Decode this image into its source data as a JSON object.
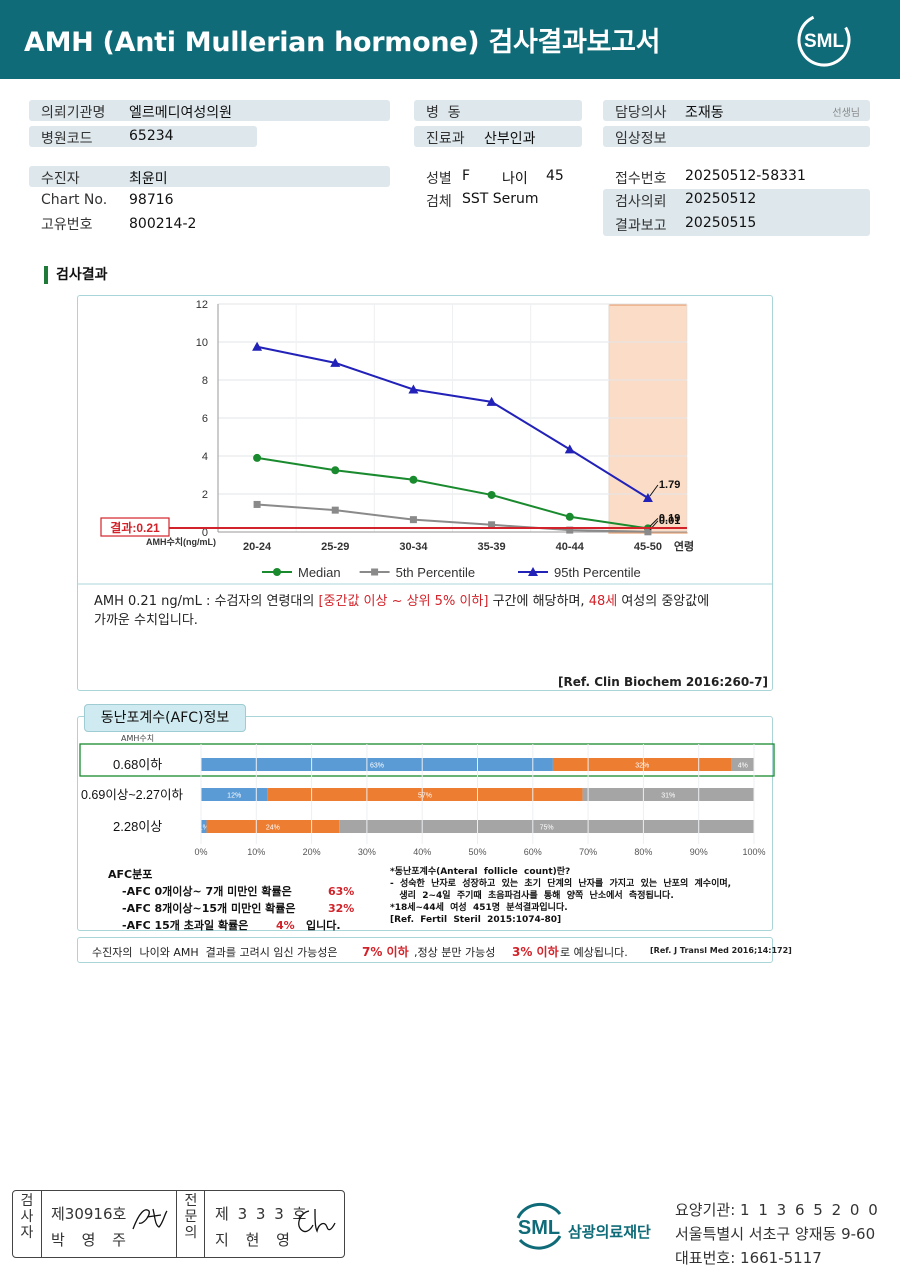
{
  "header": {
    "title": "AMH (Anti Mullerian hormone) 검사결과보고서",
    "logo_text": "SML"
  },
  "info": {
    "institution_label": "의뢰기관명",
    "institution": "엘르메디여성의원",
    "hospital_code_label": "병원코드",
    "hospital_code": "65234",
    "patient_label": "수진자",
    "patient": "최윤미",
    "chart_no_label": "Chart No.",
    "chart_no": "98716",
    "unique_no_label": "고유번호",
    "unique_no": "800214-2",
    "ward_label": "병  동",
    "ward": "",
    "dept_label": "진료과",
    "dept": "산부인과",
    "sex_label": "성별",
    "sex": "F",
    "age_label": "나이",
    "age": "45",
    "specimen_label": "검체",
    "specimen": "SST Serum",
    "doctor_label": "담당의사",
    "doctor": "조재동",
    "doctor_suffix": "선생님",
    "clinical_label": "임상정보",
    "clinical": "",
    "receipt_label": "접수번호",
    "receipt": "20250512-58331",
    "request_label": "검사의뢰",
    "request": "20250512",
    "report_label": "결과보고",
    "report": "20250515"
  },
  "section_title": "검사결과",
  "chart_data": {
    "type": "line",
    "categories": [
      "20-24",
      "25-29",
      "30-34",
      "35-39",
      "40-44",
      "45-50"
    ],
    "xlabel": "연령",
    "ylabel": "AMH수치(ng/mL)",
    "ylim": [
      0,
      12
    ],
    "yticks": [
      0,
      2,
      4,
      6,
      8,
      10,
      12
    ],
    "grid": true,
    "legend_position": "bottom",
    "highlight_category": "45-50",
    "series": [
      {
        "name": "Median",
        "color": "#1a8a2e",
        "marker": "circle",
        "values": [
          3.9,
          3.25,
          2.75,
          1.95,
          0.8,
          0.19
        ]
      },
      {
        "name": "5th Percentile",
        "color": "#8a8a8a",
        "marker": "square",
        "values": [
          1.45,
          1.15,
          0.65,
          0.38,
          0.1,
          0.01
        ]
      },
      {
        "name": "95th Percentile",
        "color": "#2222b8",
        "marker": "triangle",
        "values": [
          9.75,
          8.9,
          7.5,
          6.85,
          4.35,
          1.79
        ]
      }
    ],
    "annotations": [
      "1.79",
      "0.19",
      "0.01"
    ],
    "result_line": {
      "label": "결과:0.21",
      "value": 0.21,
      "color": "#d2232a"
    }
  },
  "interpretation": {
    "p1": "AMH  0.21 ng/mL : 수검자의 연령대의 ",
    "range": "[중간값 이상 ~ 상위 5% 이하]",
    "p2": "  구간에 해당하며, ",
    "age_ref": "48세",
    "p3": " 여성의 중앙값에",
    "line2": "가까운 수치입니다.",
    "ref": "[Ref. Clin Biochem 2016:260-7]"
  },
  "afc": {
    "title": "동난포계수(AFC)정보",
    "axis_head": "AMH수치",
    "rows": [
      {
        "label": "0.68이하",
        "values": [
          63,
          32,
          4
        ],
        "labels": [
          "63%",
          "32%",
          "4%"
        ],
        "highlight": true
      },
      {
        "label": "0.69이상~2.27이하",
        "values": [
          12,
          57,
          31
        ],
        "labels": [
          "12%",
          "57%",
          "31%"
        ],
        "highlight": false
      },
      {
        "label": "2.28이상",
        "values": [
          1,
          24,
          75
        ],
        "labels": [
          "1%",
          "24%",
          "75%"
        ],
        "highlight": false
      }
    ],
    "segment_colors": [
      "#5b9bd5",
      "#ed7d31",
      "#a5a5a5"
    ],
    "xticks": [
      "0%",
      "10%",
      "20%",
      "30%",
      "40%",
      "50%",
      "60%",
      "70%",
      "80%",
      "90%",
      "100%"
    ],
    "dist_title": "AFC분포",
    "dist": [
      {
        "text": "-AFC  0개이상~ 7개 미만인 확률은",
        "pct": "63%",
        "tail": ""
      },
      {
        "text": "-AFC  8개이상~15개 미만인 확률은",
        "pct": "32%",
        "tail": ""
      },
      {
        "text": "-AFC  15개 초과일 확률은",
        "pct": "4%",
        "tail": "입니다."
      }
    ],
    "notes": [
      "*동난포계수(Anteral  follicle  count)란?",
      "-  성숙한  난자로  성장하고  있는  초기  단계의  난자를  가지고  있는  난포의  계수이며,",
      "   생리  2~4일  주기때  초음파검사를  통해  양쪽  난소에서  측정됩니다.",
      "*18세~44세  여성  451명  분석결과입니다.",
      "[Ref.  Fertil  Steril  2015:1074-80]"
    ]
  },
  "pregnancy": {
    "p1": "수진자의  나이와 AMH  결과를 고려시 임신 가능성은",
    "pct1": "7% 이하",
    "p2": ",정상 분만 가능성",
    "pct2": "3% 이하",
    "p3": "로 예상됩니다.",
    "ref": "[Ref. J Transl Med 2016;14:172]"
  },
  "signatures": {
    "inspector_head": "검\n사\n자",
    "inspector_no": "제30916호",
    "inspector_name": "박 영 주",
    "specialist_head": "전\n문\n의",
    "specialist_no": "제 3 3 3 호",
    "specialist_name": "지 현 영"
  },
  "organization": {
    "name": "삼광의료재단",
    "logo_text": "SML",
    "code_label": "요양기관:",
    "code": "1 1 3 6 5 2 0 0",
    "address": "서울특별시 서초구 양재동 9-60",
    "phone_label": "대표번호:",
    "phone": "1661-5117"
  }
}
